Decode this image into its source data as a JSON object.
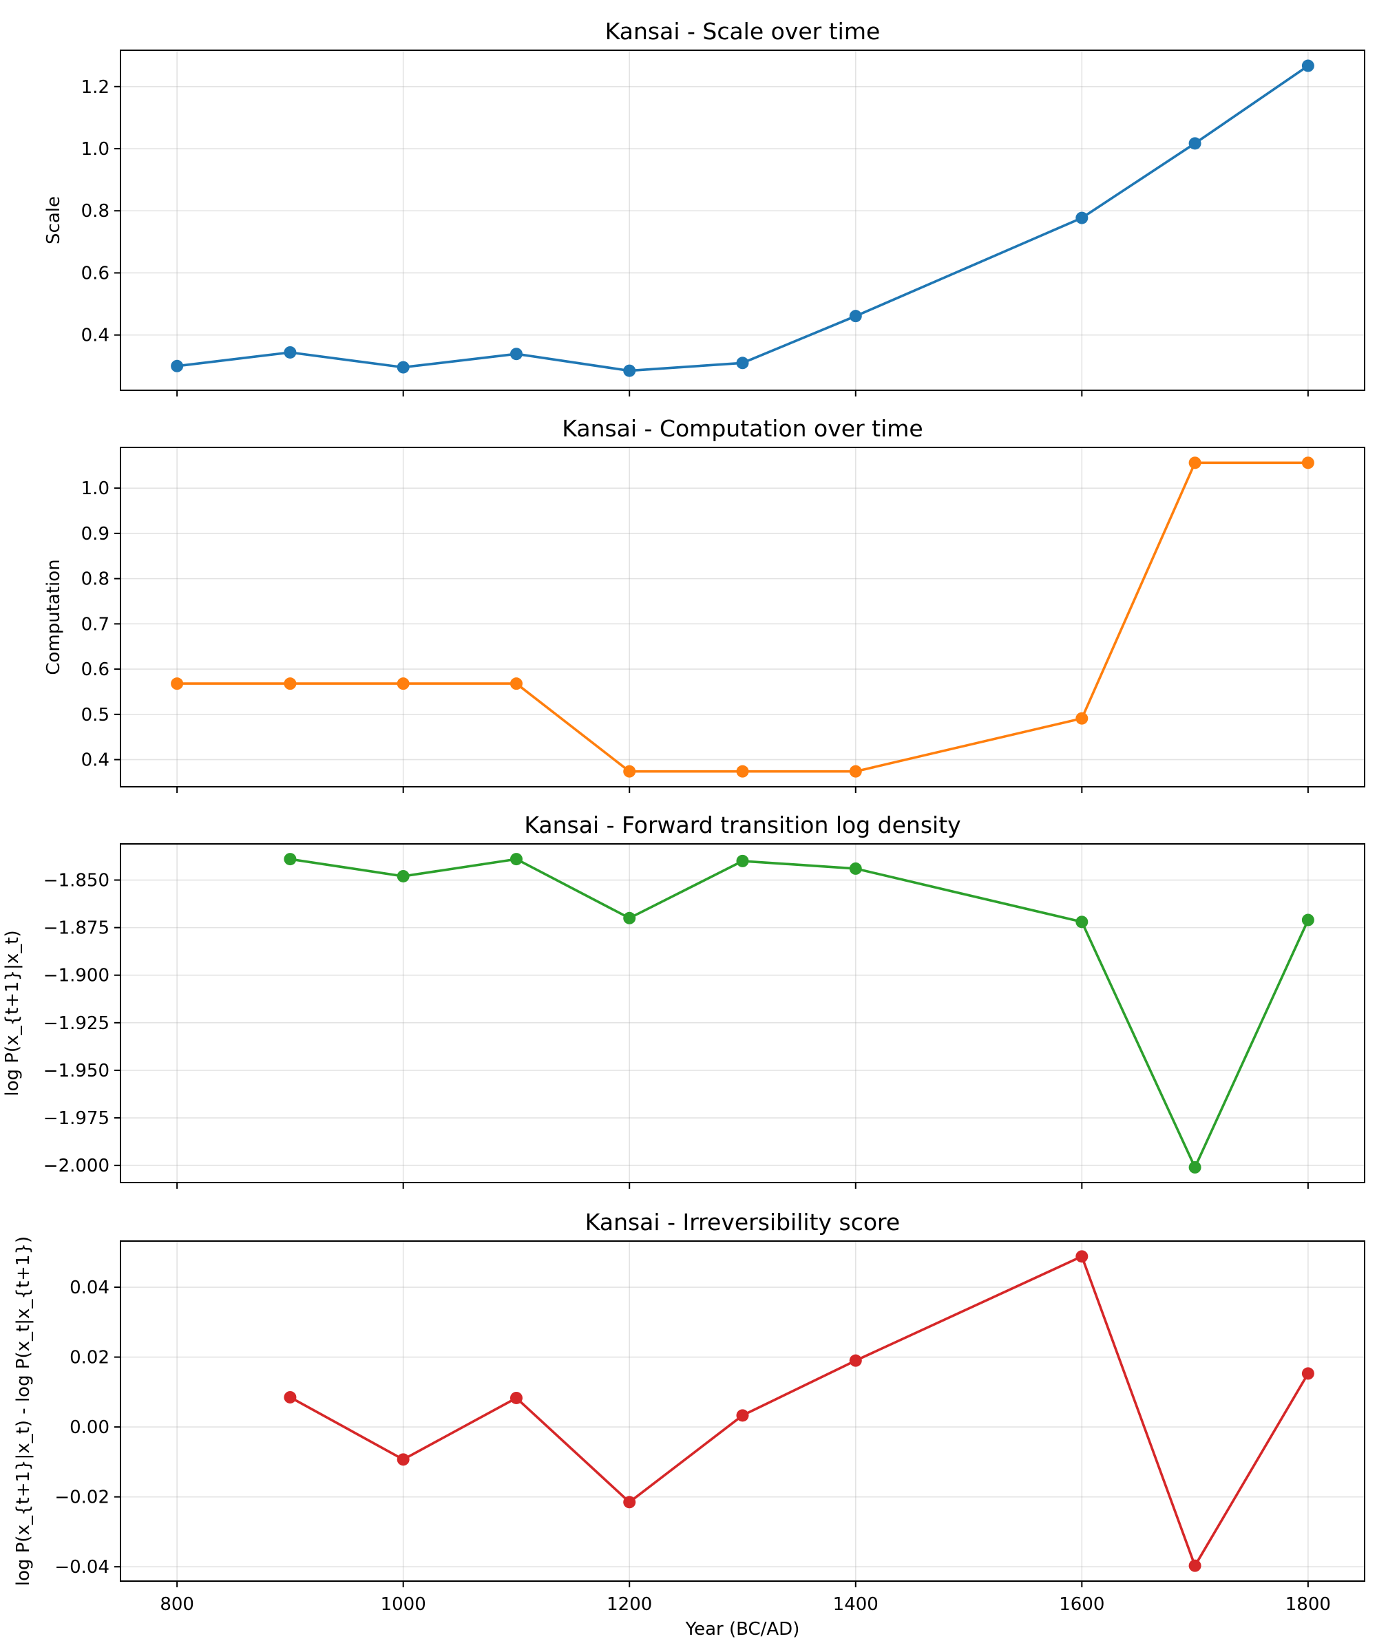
{
  "chart_data": [
    {
      "type": "line",
      "title": "Kansai - Scale over time",
      "xlabel": "",
      "ylabel": "Scale",
      "color": "#1f77b4",
      "x": [
        800,
        900,
        1000,
        1100,
        1200,
        1300,
        1400,
        1600,
        1700,
        1800
      ],
      "values": [
        0.3,
        0.344,
        0.296,
        0.339,
        0.285,
        0.31,
        0.461,
        0.777,
        1.017,
        1.267
      ],
      "ylim": [
        0.222,
        1.317
      ],
      "yticks": [
        0.4,
        0.6,
        0.8,
        1.0,
        1.2
      ],
      "ytick_labels": [
        "0.4",
        "0.6",
        "0.8",
        "1.0",
        "1.2"
      ]
    },
    {
      "type": "line",
      "title": "Kansai - Computation over time",
      "xlabel": "",
      "ylabel": "Computation",
      "color": "#ff7f0e",
      "x": [
        800,
        900,
        1000,
        1100,
        1200,
        1300,
        1400,
        1600,
        1700,
        1800
      ],
      "values": [
        0.568,
        0.568,
        0.568,
        0.568,
        0.374,
        0.374,
        0.374,
        0.491,
        1.056,
        1.056
      ],
      "ylim": [
        0.34,
        1.09
      ],
      "yticks": [
        0.4,
        0.5,
        0.6,
        0.7,
        0.8,
        0.9,
        1.0
      ],
      "ytick_labels": [
        "0.4",
        "0.5",
        "0.6",
        "0.7",
        "0.8",
        "0.9",
        "1.0"
      ]
    },
    {
      "type": "line",
      "title": "Kansai - Forward transition log density",
      "xlabel": "",
      "ylabel": "log P(x_{t+1}|x_t)",
      "color": "#2ca02c",
      "x": [
        900,
        1000,
        1100,
        1200,
        1300,
        1400,
        1600,
        1700,
        1800
      ],
      "values": [
        -1.839,
        -1.848,
        -1.839,
        -1.87,
        -1.84,
        -1.844,
        -1.872,
        -2.001,
        -1.871
      ],
      "ylim": [
        -2.009,
        -1.831
      ],
      "yticks": [
        -2.0,
        -1.975,
        -1.95,
        -1.925,
        -1.9,
        -1.875,
        -1.85
      ],
      "ytick_labels": [
        "−2.000",
        "−1.975",
        "−1.950",
        "−1.925",
        "−1.900",
        "−1.875",
        "−1.850"
      ]
    },
    {
      "type": "line",
      "title": "Kansai - Irreversibility score",
      "xlabel": "Year (BC/AD)",
      "ylabel": "log P(x_{t+1}|x_t) - log P(x_t|x_{t+1})",
      "color": "#d62728",
      "x": [
        900,
        1000,
        1100,
        1200,
        1300,
        1400,
        1600,
        1700,
        1800
      ],
      "values": [
        0.0085,
        -0.0093,
        0.0083,
        -0.0215,
        0.0033,
        0.019,
        0.0488,
        -0.0397,
        0.0153
      ],
      "ylim": [
        -0.0441,
        0.0532
      ],
      "yticks": [
        -0.04,
        -0.02,
        0.0,
        0.02,
        0.04
      ],
      "ytick_labels": [
        "−0.04",
        "−0.02",
        "0.00",
        "0.02",
        "0.04"
      ]
    }
  ],
  "x_axis": {
    "xlim": [
      750,
      1850
    ],
    "ticks": [
      800,
      1000,
      1200,
      1400,
      1600,
      1800
    ],
    "tick_labels": [
      "800",
      "1000",
      "1200",
      "1400",
      "1600",
      "1800"
    ]
  }
}
